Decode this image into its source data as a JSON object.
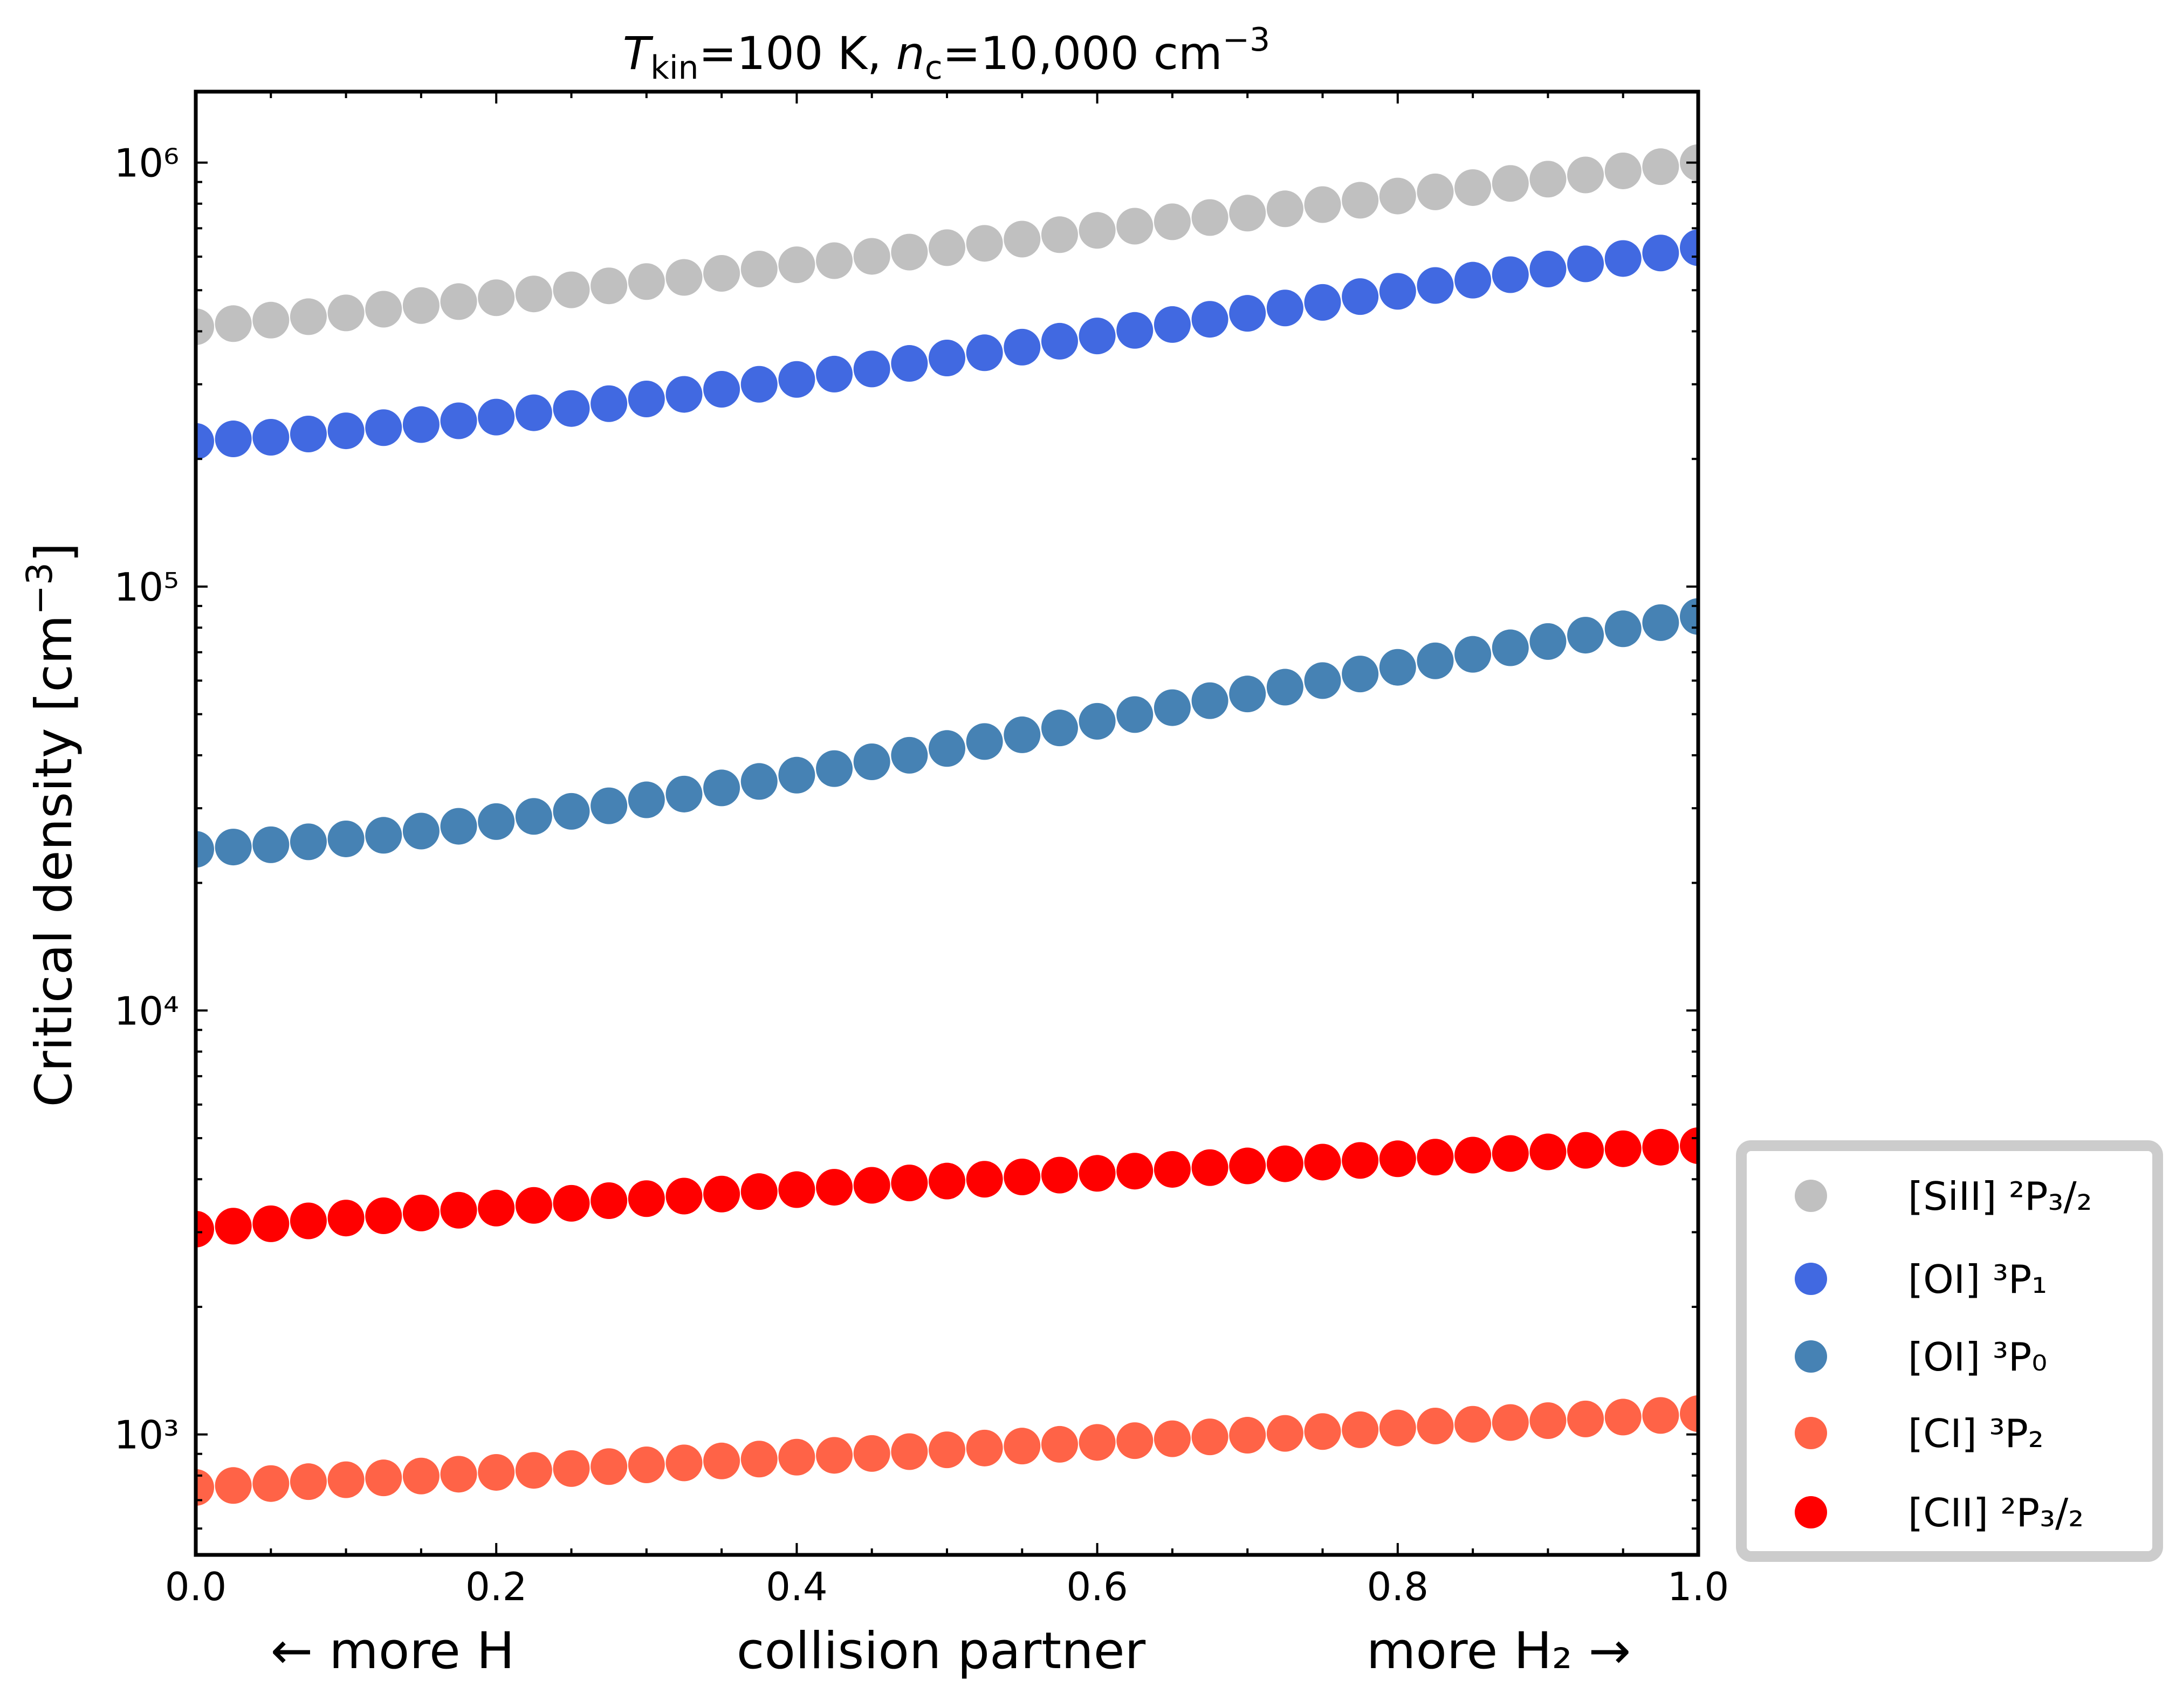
{
  "chart_data": {
    "type": "scatter",
    "title": [
      "T",
      "kin",
      "=100 K, ",
      "n",
      "c",
      "=10,000 cm",
      "−3"
    ],
    "ylabel": [
      "Critical density [cm",
      "−3",
      "]"
    ],
    "xlabel": "collision partner",
    "annotations": [
      "← more H",
      "more H₂ →"
    ],
    "log_y": true,
    "legend": "outside-lower-right",
    "xlim": [
      0,
      1
    ],
    "xticks": [
      {
        "value": 0,
        "label": "0.0"
      },
      0.2,
      0.4,
      0.6,
      0.8,
      {
        "value": 1,
        "label": "1.0"
      }
    ],
    "xminorticks": [
      0.05,
      0.1,
      0.15,
      0.25,
      0.3,
      0.35,
      0.45,
      0.5,
      0.55,
      0.65,
      0.7,
      0.75,
      0.85,
      0.9,
      0.95
    ],
    "ylim": [
      520,
      1470000
    ],
    "yticks": [
      {
        "value": 1000,
        "label": "10³"
      },
      {
        "value": 10000,
        "label": "10⁴"
      },
      {
        "value": 100000,
        "label": "10⁵"
      },
      {
        "value": 1000000,
        "label": "10⁶"
      }
    ],
    "yminorticks": [
      600,
      700,
      800,
      900,
      2000,
      3000,
      4000,
      5000,
      6000,
      7000,
      8000,
      9000,
      20000,
      30000,
      40000,
      50000,
      60000,
      70000,
      80000,
      90000,
      200000,
      300000,
      400000,
      500000,
      600000,
      700000,
      800000,
      900000
    ],
    "x": [
      0,
      0.025,
      0.05,
      0.075,
      0.1,
      0.125,
      0.15,
      0.175,
      0.2,
      0.225,
      0.25,
      0.275,
      0.3,
      0.325,
      0.35,
      0.375,
      0.4,
      0.425,
      0.45,
      0.475,
      0.5,
      0.525,
      0.55,
      0.575,
      0.6,
      0.625,
      0.65,
      0.675,
      0.7,
      0.725,
      0.75,
      0.775,
      0.8,
      0.825,
      0.85,
      0.875,
      0.9,
      0.925,
      0.95,
      0.975,
      1
    ],
    "series": [
      {
        "name": "[SiII] ²P₃/₂",
        "color": "#c0c0c0",
        "values": [
          410000,
          417000,
          425000,
          433000,
          442000,
          451000,
          460000,
          470000,
          480000,
          490000,
          501000,
          512000,
          524000,
          536000,
          548000,
          561000,
          574000,
          587000,
          601000,
          615000,
          630000,
          645000,
          660000,
          676000,
          692000,
          708000,
          725000,
          742000,
          760000,
          778000,
          796000,
          815000,
          834000,
          853000,
          873000,
          893000,
          914000,
          935000,
          956000,
          978000,
          1000000
        ]
      },
      {
        "name": "[OI] ³P₁",
        "color": "#4169e1",
        "values": [
          220000,
          223000,
          225000,
          229000,
          233000,
          237000,
          241000,
          246000,
          251000,
          257000,
          263000,
          270000,
          277000,
          284000,
          292000,
          300000,
          308000,
          317000,
          326000,
          336000,
          346000,
          356000,
          367000,
          379000,
          390000,
          402000,
          415000,
          427000,
          441000,
          454000,
          468000,
          483000,
          497000,
          513000,
          528000,
          544000,
          561000,
          577000,
          594000,
          612000,
          630000
        ]
      },
      {
        "name": "[OI] ³P₀",
        "color": "#4682b4",
        "values": [
          24000,
          24300,
          24600,
          25000,
          25400,
          25900,
          26500,
          27200,
          27900,
          28700,
          29500,
          30400,
          31400,
          32400,
          33500,
          34700,
          35900,
          37200,
          38600,
          40000,
          41500,
          43100,
          44700,
          46400,
          48100,
          49900,
          51800,
          53800,
          55800,
          57900,
          60000,
          62200,
          64500,
          66800,
          69200,
          71700,
          74200,
          76800,
          79500,
          82200,
          85000
        ]
      },
      {
        "name": "[CI] ³P₂",
        "color": "#ff6347",
        "values": [
          750,
          758,
          766,
          774,
          782,
          790,
          798,
          806,
          814,
          823,
          831,
          840,
          848,
          857,
          866,
          875,
          884,
          893,
          902,
          911,
          920,
          929,
          939,
          948,
          958,
          967,
          977,
          987,
          996,
          1006,
          1016,
          1026,
          1036,
          1047,
          1057,
          1067,
          1078,
          1088,
          1099,
          1109,
          1120
        ]
      },
      {
        "name": "[CII] ²P₃/₂",
        "color": "#ff0000",
        "values": [
          3050,
          3100,
          3140,
          3190,
          3240,
          3280,
          3330,
          3380,
          3420,
          3470,
          3510,
          3560,
          3600,
          3650,
          3690,
          3740,
          3780,
          3830,
          3870,
          3920,
          3960,
          4000,
          4050,
          4090,
          4130,
          4180,
          4220,
          4260,
          4300,
          4350,
          4390,
          4430,
          4470,
          4510,
          4560,
          4600,
          4640,
          4680,
          4720,
          4760,
          4800
        ]
      }
    ]
  }
}
